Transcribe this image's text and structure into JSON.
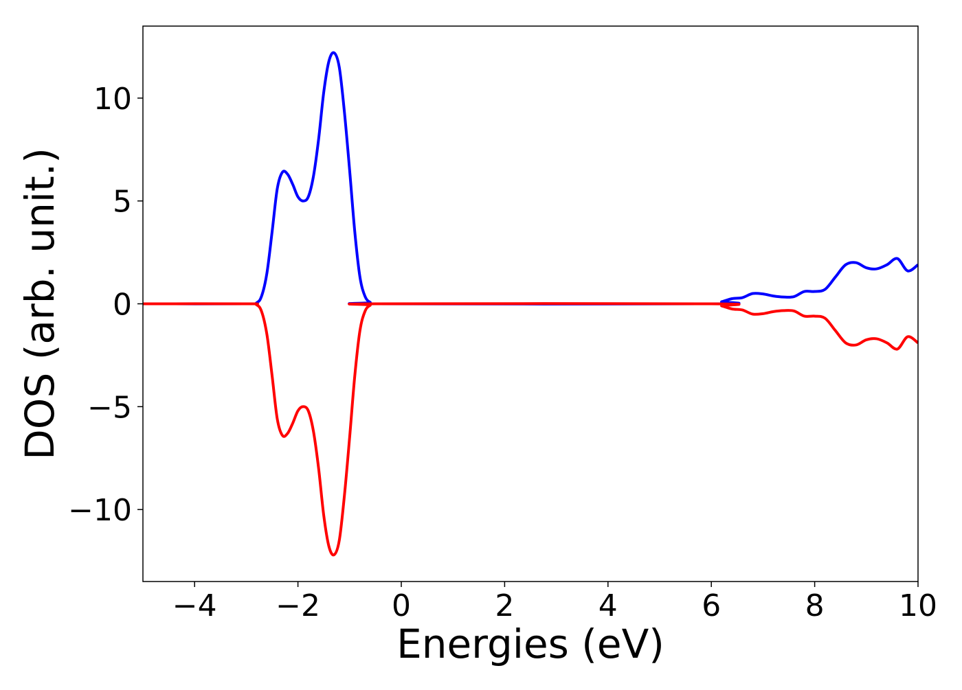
{
  "chart_data": {
    "type": "line",
    "title": "",
    "xlabel": "Energies (eV)",
    "ylabel": "DOS (arb. unit.)",
    "xlim": [
      -5,
      10
    ],
    "ylim": [
      -13.5,
      13.5
    ],
    "x_ticks": [
      -4,
      -2,
      0,
      2,
      4,
      6,
      8,
      10
    ],
    "x_tick_labels": [
      "−4",
      "−2",
      "0",
      "2",
      "4",
      "6",
      "8",
      "10"
    ],
    "y_ticks": [
      -10,
      -5,
      0,
      5,
      10
    ],
    "y_tick_labels": [
      "−10",
      "−5",
      "0",
      "5",
      "10"
    ],
    "grid": false,
    "legend": "none",
    "series": [
      {
        "color": "#0000ff",
        "points": [
          [
            -5.0,
            0.0
          ],
          [
            -3.0,
            0.0
          ],
          [
            -2.8,
            0.05
          ],
          [
            -2.7,
            0.4
          ],
          [
            -2.6,
            1.5
          ],
          [
            -2.5,
            3.5
          ],
          [
            -2.4,
            5.6
          ],
          [
            -2.3,
            6.4
          ],
          [
            -2.2,
            6.3
          ],
          [
            -2.1,
            5.8
          ],
          [
            -2.0,
            5.2
          ],
          [
            -1.9,
            5.0
          ],
          [
            -1.8,
            5.2
          ],
          [
            -1.7,
            6.2
          ],
          [
            -1.6,
            8.0
          ],
          [
            -1.5,
            10.3
          ],
          [
            -1.4,
            11.8
          ],
          [
            -1.3,
            12.2
          ],
          [
            -1.2,
            11.5
          ],
          [
            -1.1,
            9.3
          ],
          [
            -1.0,
            6.5
          ],
          [
            -0.9,
            3.5
          ],
          [
            -0.8,
            1.3
          ],
          [
            -0.7,
            0.35
          ],
          [
            -0.6,
            0.07
          ],
          [
            -0.5,
            0.0
          ],
          [
            6.0,
            0.0
          ],
          [
            6.2,
            0.1
          ],
          [
            6.4,
            0.25
          ],
          [
            6.6,
            0.3
          ],
          [
            6.8,
            0.5
          ],
          [
            7.0,
            0.48
          ],
          [
            7.2,
            0.38
          ],
          [
            7.4,
            0.33
          ],
          [
            7.6,
            0.35
          ],
          [
            7.8,
            0.6
          ],
          [
            8.0,
            0.6
          ],
          [
            8.2,
            0.7
          ],
          [
            8.4,
            1.3
          ],
          [
            8.6,
            1.9
          ],
          [
            8.8,
            2.0
          ],
          [
            9.0,
            1.75
          ],
          [
            9.2,
            1.7
          ],
          [
            9.4,
            1.9
          ],
          [
            9.6,
            2.2
          ],
          [
            9.8,
            1.6
          ],
          [
            10.0,
            1.9
          ]
        ]
      },
      {
        "color": "#ff0000",
        "points": [
          [
            -5.0,
            0.0
          ],
          [
            -3.0,
            0.0
          ],
          [
            -2.8,
            -0.05
          ],
          [
            -2.7,
            -0.4
          ],
          [
            -2.6,
            -1.5
          ],
          [
            -2.5,
            -3.5
          ],
          [
            -2.4,
            -5.6
          ],
          [
            -2.3,
            -6.4
          ],
          [
            -2.2,
            -6.3
          ],
          [
            -2.1,
            -5.8
          ],
          [
            -2.0,
            -5.2
          ],
          [
            -1.9,
            -5.0
          ],
          [
            -1.8,
            -5.2
          ],
          [
            -1.7,
            -6.2
          ],
          [
            -1.6,
            -8.0
          ],
          [
            -1.5,
            -10.3
          ],
          [
            -1.4,
            -11.8
          ],
          [
            -1.3,
            -12.2
          ],
          [
            -1.2,
            -11.5
          ],
          [
            -1.1,
            -9.3
          ],
          [
            -1.0,
            -6.5
          ],
          [
            -0.9,
            -3.5
          ],
          [
            -0.8,
            -1.3
          ],
          [
            -0.7,
            -0.35
          ],
          [
            -0.6,
            -0.07
          ],
          [
            -0.5,
            0.0
          ],
          [
            6.0,
            0.0
          ],
          [
            6.2,
            -0.1
          ],
          [
            6.4,
            -0.25
          ],
          [
            6.6,
            -0.3
          ],
          [
            6.8,
            -0.5
          ],
          [
            7.0,
            -0.48
          ],
          [
            7.2,
            -0.38
          ],
          [
            7.4,
            -0.33
          ],
          [
            7.6,
            -0.35
          ],
          [
            7.8,
            -0.6
          ],
          [
            8.0,
            -0.6
          ],
          [
            8.2,
            -0.7
          ],
          [
            8.4,
            -1.3
          ],
          [
            8.6,
            -1.9
          ],
          [
            8.8,
            -2.0
          ],
          [
            9.0,
            -1.75
          ],
          [
            9.2,
            -1.7
          ],
          [
            9.4,
            -1.9
          ],
          [
            9.6,
            -2.2
          ],
          [
            9.8,
            -1.6
          ],
          [
            10.0,
            -1.9
          ]
        ]
      }
    ]
  }
}
